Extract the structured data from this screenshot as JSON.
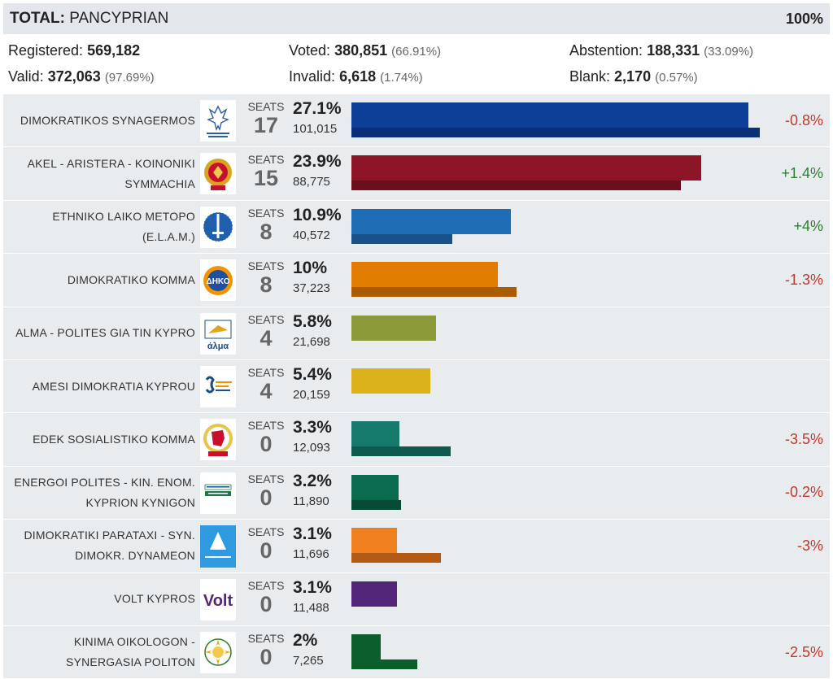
{
  "header": {
    "title_label": "TOTAL:",
    "title_value": "PANCYPRIAN",
    "percent": "100%"
  },
  "stats": {
    "registered": {
      "label": "Registered:",
      "value": "569,182",
      "paren": ""
    },
    "voted": {
      "label": "Voted:",
      "value": "380,851",
      "paren": "(66.91%)"
    },
    "abstention": {
      "label": "Abstention:",
      "value": "188,331",
      "paren": "(33.09%)"
    },
    "valid": {
      "label": "Valid:",
      "value": "372,063",
      "paren": "(97.69%)"
    },
    "invalid": {
      "label": "Invalid:",
      "value": "6,618",
      "paren": "(1.74%)"
    },
    "blank": {
      "label": "Blank:",
      "value": "2,170",
      "paren": "(0.57%)"
    }
  },
  "seats_label": "SEATS",
  "max_percent": 27.1,
  "parties": [
    {
      "name": "DIMOKRATIKOS SYNAGERMOS",
      "seats": "17",
      "percent_label": "27.1%",
      "votes": "101,015",
      "change": "-0.8%",
      "change_dir": "neg",
      "pct": 27.1,
      "prev_pct": 27.9,
      "color": "#0d3f99",
      "prev_color": "#0a2f78",
      "logo": "disy-eagle-logo"
    },
    {
      "name": "AKEL - ARISTERA - KOINONIKI SYMMACHIA",
      "seats": "15",
      "percent_label": "23.9%",
      "votes": "88,775",
      "change": "+1.4%",
      "change_dir": "pos",
      "pct": 23.9,
      "prev_pct": 22.5,
      "color": "#8e1528",
      "prev_color": "#6b0f1d",
      "logo": "akel-emblem-logo"
    },
    {
      "name": "ETHNIKO LAIKO METOPO (E.L.A.M.)",
      "seats": "8",
      "percent_label": "10.9%",
      "votes": "40,572",
      "change": "+4%",
      "change_dir": "pos",
      "pct": 10.9,
      "prev_pct": 6.9,
      "color": "#1f6eb5",
      "prev_color": "#17528a",
      "logo": "elam-sword-logo"
    },
    {
      "name": "DIMOKRATIKO KOMMA",
      "seats": "8",
      "percent_label": "10%",
      "votes": "37,223",
      "change": "-1.3%",
      "change_dir": "neg",
      "pct": 10.0,
      "prev_pct": 11.3,
      "color": "#e07c00",
      "prev_color": "#a85d00",
      "logo": "diko-logo"
    },
    {
      "name": "ALMA - POLITES GIA TIN KYPRO",
      "seats": "4",
      "percent_label": "5.8%",
      "votes": "21,698",
      "change": "",
      "change_dir": "",
      "pct": 5.8,
      "prev_pct": 0,
      "color": "#8c9a3a",
      "prev_color": "#8c9a3a",
      "logo": "alma-logo"
    },
    {
      "name": "AMESI DIMOKRATIA KYPROU",
      "seats": "4",
      "percent_label": "5.4%",
      "votes": "20,159",
      "change": "",
      "change_dir": "",
      "pct": 5.4,
      "prev_pct": 0,
      "color": "#dcb21c",
      "prev_color": "#dcb21c",
      "logo": "amesi-dimokratia-logo"
    },
    {
      "name": "EDEK SOSIALISTIKO KOMMA",
      "seats": "0",
      "percent_label": "3.3%",
      "votes": "12,093",
      "change": "-3.5%",
      "change_dir": "neg",
      "pct": 3.3,
      "prev_pct": 6.8,
      "color": "#157a6b",
      "prev_color": "#0e5a4f",
      "logo": "edek-fist-logo"
    },
    {
      "name": "ENERGOI POLITES - KIN. ENOM. KYPRION KYNIGON",
      "seats": "0",
      "percent_label": "3.2%",
      "votes": "11,890",
      "change": "-0.2%",
      "change_dir": "neg",
      "pct": 3.2,
      "prev_pct": 3.4,
      "color": "#0b6b4f",
      "prev_color": "#074b37",
      "logo": "energoi-polites-logo"
    },
    {
      "name": "DIMOKRATIKI PARATAXI - SYN. DIMOKR. DYNAMEON",
      "seats": "0",
      "percent_label": "3.1%",
      "votes": "11,696",
      "change": "-3%",
      "change_dir": "neg",
      "pct": 3.1,
      "prev_pct": 6.1,
      "color": "#f07f1e",
      "prev_color": "#b35a14",
      "logo": "dipa-logo"
    },
    {
      "name": "VOLT KYPROS",
      "seats": "0",
      "percent_label": "3.1%",
      "votes": "11,488",
      "change": "",
      "change_dir": "",
      "pct": 3.1,
      "prev_pct": 0,
      "color": "#54267a",
      "prev_color": "#54267a",
      "logo": "volt-logo"
    },
    {
      "name": "KINIMA OIKOLOGON - SYNERGASIA POLITON",
      "seats": "0",
      "percent_label": "2%",
      "votes": "7,265",
      "change": "-2.5%",
      "change_dir": "neg",
      "pct": 2.0,
      "prev_pct": 4.5,
      "color": "#0c5e2c",
      "prev_color": "#0c5e2c",
      "logo": "kinima-oikologon-logo"
    }
  ]
}
